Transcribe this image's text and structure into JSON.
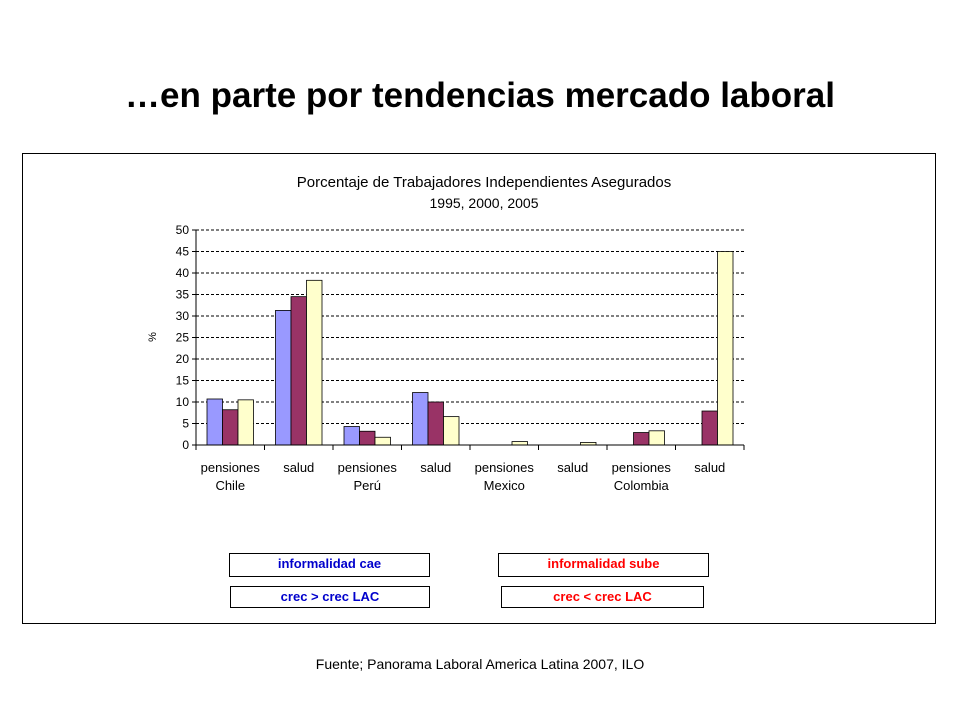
{
  "slide": {
    "title": "…en parte por tendencias mercado laboral",
    "source": "Fuente; Panorama Laboral America Latina 2007, ILO"
  },
  "chart_data": {
    "type": "bar",
    "title": "Porcentaje de Trabajadores Independientes Asegurados",
    "subtitle": "1995, 2000, 2005",
    "ylabel": "%",
    "xlabel": "",
    "ylim": [
      0,
      50
    ],
    "yticks": [
      0,
      5,
      10,
      15,
      20,
      25,
      30,
      35,
      40,
      45,
      50
    ],
    "grid": true,
    "categories": [
      {
        "label": "pensiones",
        "group": "Chile"
      },
      {
        "label": "salud",
        "group": ""
      },
      {
        "label": "pensiones",
        "group": "Perú"
      },
      {
        "label": "salud",
        "group": ""
      },
      {
        "label": "pensiones",
        "group": "Mexico"
      },
      {
        "label": "salud",
        "group": ""
      },
      {
        "label": "pensiones",
        "group": "Colombia"
      },
      {
        "label": "salud",
        "group": ""
      }
    ],
    "series": [
      {
        "color": "#9999ff",
        "values": [
          10.7,
          31.3,
          4.3,
          12.2,
          0,
          0,
          0,
          0
        ]
      },
      {
        "color": "#993366",
        "values": [
          8.2,
          34.5,
          3.2,
          10.0,
          0,
          0,
          2.9,
          7.9
        ]
      },
      {
        "color": "#ffffcc",
        "values": [
          10.5,
          38.3,
          1.8,
          6.6,
          0.8,
          0.6,
          3.3,
          45.0
        ]
      }
    ]
  },
  "legend_boxes": {
    "cae": {
      "text": "informalidad cae",
      "color": "#0000cc"
    },
    "sube": {
      "text": "informalidad sube",
      "color": "#ff0000"
    },
    "crec_mayor": {
      "text": "crec > crec LAC",
      "color": "#0000cc"
    },
    "crec_menor": {
      "text": "crec < crec LAC",
      "color": "#ff0000"
    }
  }
}
